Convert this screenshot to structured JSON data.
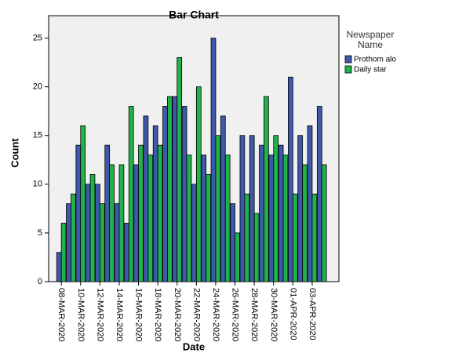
{
  "chart_data": {
    "type": "bar",
    "title": "Bar Chart",
    "x_label": "Date",
    "y_label": "Count",
    "legend_title": "Newspaper Name",
    "legend_position": "right",
    "grid": false,
    "categories": [
      "08-MAR-2020",
      null,
      "10-MAR-2020",
      null,
      "12-MAR-2020",
      null,
      "14-MAR-2020",
      null,
      "16-MAR-2020",
      null,
      "18-MAR-2020",
      null,
      "20-MAR-2020",
      null,
      "22-MAR-2020",
      null,
      "24-MAR-2020",
      null,
      "26-MAR-2020",
      null,
      "28-MAR-2020",
      null,
      "30-MAR-2020",
      null,
      "01-APR-2020",
      null,
      "03-APR-2020",
      null
    ],
    "series": [
      {
        "name": "Prothom alo",
        "color": "#3e58ac",
        "values": [
          3,
          8,
          14,
          10,
          10,
          14,
          8,
          6,
          12,
          17,
          16,
          18,
          19,
          18,
          10,
          13,
          25,
          17,
          8,
          15,
          15,
          14,
          13,
          14,
          21,
          15,
          16,
          18
        ]
      },
      {
        "name": "Daily star",
        "color": "#21b24b",
        "values": [
          6,
          9,
          16,
          11,
          8,
          12,
          12,
          18,
          14,
          13,
          14,
          19,
          23,
          13,
          20,
          11,
          15,
          13,
          5,
          9,
          7,
          19,
          15,
          13,
          9,
          12,
          9,
          12
        ]
      }
    ],
    "ylim": [
      0,
      27.3
    ],
    "yticks": [
      0,
      5,
      10,
      15,
      20,
      25
    ]
  }
}
